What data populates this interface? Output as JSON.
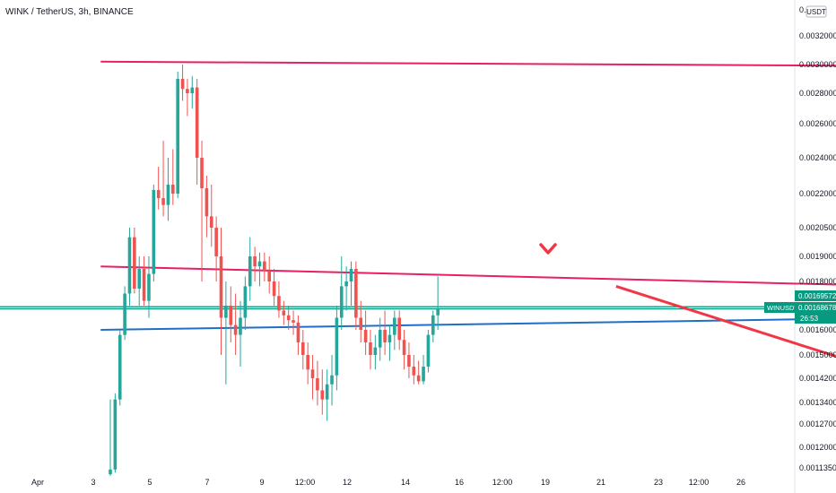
{
  "header": {
    "title": "WINK / TetherUS, 3h, BINANCE"
  },
  "axis": {
    "currency": "USDT",
    "top_label_partial": "0.0 00",
    "y_ticks": [
      "0.00320000",
      "0.00300000",
      "0.00280000",
      "0.00260000",
      "0.00240000",
      "0.00220000",
      "0.00205000",
      "0.00190000",
      "0.00180000",
      "0.00160000",
      "0.00150000",
      "0.00142000",
      "0.00134000",
      "0.00127000",
      "0.00120000",
      "0.00113500"
    ],
    "x_ticks": [
      "Apr",
      "3",
      "5",
      "7",
      "9",
      "12:00",
      "12",
      "14",
      "16",
      "12:00",
      "19",
      "21",
      "23",
      "12:00",
      "26"
    ]
  },
  "price_tags": {
    "upper": "0.00169572",
    "symbol": "WINUSDT",
    "last": "0.00168678",
    "countdown": "26:53"
  },
  "colors": {
    "up": "#26a69a",
    "down": "#ef5350",
    "resistance": "#e91e63",
    "support_h": "#089981",
    "trend_support": "#1e6fc8",
    "projection": "#f23645"
  },
  "chart_data": {
    "type": "candlestick",
    "symbol": "WINUSDT",
    "interval": "3h",
    "exchange": "BINANCE",
    "ohlc": [
      {
        "o": 0.001115,
        "h": 0.00135,
        "l": 0.00111,
        "c": 0.00113
      },
      {
        "o": 0.00113,
        "h": 0.00137,
        "l": 0.00112,
        "c": 0.00135
      },
      {
        "o": 0.00135,
        "h": 0.0016,
        "l": 0.00133,
        "c": 0.00158
      },
      {
        "o": 0.00158,
        "h": 0.00178,
        "l": 0.00156,
        "c": 0.00175
      },
      {
        "o": 0.00175,
        "h": 0.00205,
        "l": 0.0017,
        "c": 0.002
      },
      {
        "o": 0.002,
        "h": 0.00205,
        "l": 0.00175,
        "c": 0.00177
      },
      {
        "o": 0.00177,
        "h": 0.0019,
        "l": 0.0017,
        "c": 0.00185
      },
      {
        "o": 0.00185,
        "h": 0.0019,
        "l": 0.0017,
        "c": 0.00172
      },
      {
        "o": 0.00172,
        "h": 0.0019,
        "l": 0.00165,
        "c": 0.00183
      },
      {
        "o": 0.00183,
        "h": 0.00225,
        "l": 0.0018,
        "c": 0.00222
      },
      {
        "o": 0.00222,
        "h": 0.00235,
        "l": 0.00213,
        "c": 0.00218
      },
      {
        "o": 0.00218,
        "h": 0.0025,
        "l": 0.0021,
        "c": 0.00215
      },
      {
        "o": 0.00215,
        "h": 0.0024,
        "l": 0.00208,
        "c": 0.00225
      },
      {
        "o": 0.00225,
        "h": 0.00245,
        "l": 0.00215,
        "c": 0.0022
      },
      {
        "o": 0.0022,
        "h": 0.00295,
        "l": 0.00218,
        "c": 0.0029
      },
      {
        "o": 0.0029,
        "h": 0.003,
        "l": 0.00275,
        "c": 0.00283
      },
      {
        "o": 0.00283,
        "h": 0.0029,
        "l": 0.00265,
        "c": 0.0028
      },
      {
        "o": 0.0028,
        "h": 0.00292,
        "l": 0.0027,
        "c": 0.00284
      },
      {
        "o": 0.00284,
        "h": 0.0029,
        "l": 0.00225,
        "c": 0.0024
      },
      {
        "o": 0.0024,
        "h": 0.0025,
        "l": 0.0018,
        "c": 0.00223
      },
      {
        "o": 0.00223,
        "h": 0.0023,
        "l": 0.002,
        "c": 0.0021
      },
      {
        "o": 0.0021,
        "h": 0.00225,
        "l": 0.00195,
        "c": 0.00205
      },
      {
        "o": 0.00205,
        "h": 0.0021,
        "l": 0.0018,
        "c": 0.0019
      },
      {
        "o": 0.0019,
        "h": 0.00205,
        "l": 0.0015,
        "c": 0.00165
      },
      {
        "o": 0.00165,
        "h": 0.0018,
        "l": 0.0014,
        "c": 0.0017
      },
      {
        "o": 0.0017,
        "h": 0.00178,
        "l": 0.00155,
        "c": 0.00162
      },
      {
        "o": 0.00162,
        "h": 0.00175,
        "l": 0.0015,
        "c": 0.00158
      },
      {
        "o": 0.00158,
        "h": 0.00172,
        "l": 0.00146,
        "c": 0.00165
      },
      {
        "o": 0.00165,
        "h": 0.00182,
        "l": 0.0016,
        "c": 0.00178
      },
      {
        "o": 0.00178,
        "h": 0.002,
        "l": 0.00172,
        "c": 0.0019
      },
      {
        "o": 0.0019,
        "h": 0.00195,
        "l": 0.0018,
        "c": 0.00186
      },
      {
        "o": 0.00186,
        "h": 0.00192,
        "l": 0.00178,
        "c": 0.00188
      },
      {
        "o": 0.00188,
        "h": 0.00192,
        "l": 0.0018,
        "c": 0.00184
      },
      {
        "o": 0.00184,
        "h": 0.0019,
        "l": 0.00175,
        "c": 0.0018
      },
      {
        "o": 0.0018,
        "h": 0.00185,
        "l": 0.0017,
        "c": 0.00174
      },
      {
        "o": 0.00174,
        "h": 0.0018,
        "l": 0.00165,
        "c": 0.00168
      },
      {
        "o": 0.00168,
        "h": 0.00172,
        "l": 0.00162,
        "c": 0.00166
      },
      {
        "o": 0.00166,
        "h": 0.0017,
        "l": 0.0016,
        "c": 0.00164
      },
      {
        "o": 0.00164,
        "h": 0.00168,
        "l": 0.00158,
        "c": 0.00163
      },
      {
        "o": 0.00163,
        "h": 0.00166,
        "l": 0.0015,
        "c": 0.00155
      },
      {
        "o": 0.00155,
        "h": 0.0016,
        "l": 0.00145,
        "c": 0.0015
      },
      {
        "o": 0.0015,
        "h": 0.00155,
        "l": 0.0014,
        "c": 0.00145
      },
      {
        "o": 0.00145,
        "h": 0.0015,
        "l": 0.00135,
        "c": 0.00142
      },
      {
        "o": 0.00142,
        "h": 0.00148,
        "l": 0.00133,
        "c": 0.00138
      },
      {
        "o": 0.00138,
        "h": 0.00145,
        "l": 0.0013,
        "c": 0.00135
      },
      {
        "o": 0.00135,
        "h": 0.00145,
        "l": 0.00128,
        "c": 0.0014
      },
      {
        "o": 0.0014,
        "h": 0.0015,
        "l": 0.00133,
        "c": 0.00143
      },
      {
        "o": 0.00143,
        "h": 0.0017,
        "l": 0.00138,
        "c": 0.00165
      },
      {
        "o": 0.00165,
        "h": 0.0019,
        "l": 0.0016,
        "c": 0.00178
      },
      {
        "o": 0.00178,
        "h": 0.00186,
        "l": 0.00168,
        "c": 0.0018
      },
      {
        "o": 0.0018,
        "h": 0.00188,
        "l": 0.0017,
        "c": 0.00185
      },
      {
        "o": 0.00185,
        "h": 0.00188,
        "l": 0.0016,
        "c": 0.00165
      },
      {
        "o": 0.00165,
        "h": 0.00172,
        "l": 0.00155,
        "c": 0.0016
      },
      {
        "o": 0.0016,
        "h": 0.00168,
        "l": 0.0015,
        "c": 0.00155
      },
      {
        "o": 0.00155,
        "h": 0.0016,
        "l": 0.00145,
        "c": 0.0015
      },
      {
        "o": 0.0015,
        "h": 0.00158,
        "l": 0.00145,
        "c": 0.00153
      },
      {
        "o": 0.00153,
        "h": 0.00165,
        "l": 0.00148,
        "c": 0.0016
      },
      {
        "o": 0.0016,
        "h": 0.00168,
        "l": 0.0015,
        "c": 0.00155
      },
      {
        "o": 0.00155,
        "h": 0.00162,
        "l": 0.00148,
        "c": 0.00158
      },
      {
        "o": 0.00158,
        "h": 0.00168,
        "l": 0.00152,
        "c": 0.00165
      },
      {
        "o": 0.00165,
        "h": 0.00168,
        "l": 0.00152,
        "c": 0.00156
      },
      {
        "o": 0.00156,
        "h": 0.0016,
        "l": 0.00145,
        "c": 0.0015
      },
      {
        "o": 0.0015,
        "h": 0.00155,
        "l": 0.00142,
        "c": 0.00146
      },
      {
        "o": 0.00146,
        "h": 0.0015,
        "l": 0.0014,
        "c": 0.00143
      },
      {
        "o": 0.00143,
        "h": 0.00148,
        "l": 0.0014,
        "c": 0.00141
      },
      {
        "o": 0.00141,
        "h": 0.0015,
        "l": 0.0014,
        "c": 0.00146
      },
      {
        "o": 0.00146,
        "h": 0.0016,
        "l": 0.00144,
        "c": 0.00158
      },
      {
        "o": 0.00158,
        "h": 0.00168,
        "l": 0.00155,
        "c": 0.00166
      },
      {
        "o": 0.00166,
        "h": 0.00182,
        "l": 0.0016,
        "c": 0.00168678
      }
    ],
    "drawings": [
      {
        "name": "top-resistance-line",
        "color": "resistance",
        "p1": {
          "bar": -2,
          "price": 0.00302
        },
        "p2": {
          "bar": 165,
          "price": 0.00299
        }
      },
      {
        "name": "mid-resistance-line",
        "color": "resistance",
        "p1": {
          "bar": -2,
          "price": 0.00186
        },
        "p2": {
          "bar": 165,
          "price": 0.00178
        }
      },
      {
        "name": "upper-horizontal-line",
        "color": "support_h",
        "price": 0.00169572
      },
      {
        "name": "last-price-line",
        "color": "support_h",
        "price": 0.00168678
      },
      {
        "name": "support-trendline",
        "color": "trend_support",
        "p1": {
          "bar": -2,
          "price": 0.0016
        },
        "p2": {
          "bar": 165,
          "price": 0.00165
        }
      },
      {
        "name": "projection-line",
        "color": "projection",
        "p1": {
          "bar": 105,
          "price": 0.00178
        },
        "p2": {
          "bar": 165,
          "price": 0.00142
        }
      }
    ],
    "ylim": [
      0.00111,
      0.0033
    ],
    "grid": false
  }
}
